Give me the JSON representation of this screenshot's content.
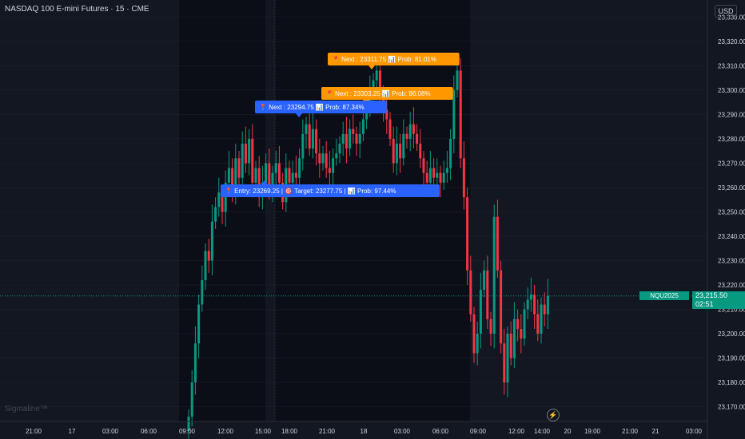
{
  "header": {
    "title": "NASDAQ 100 E-mini Futures · 15 · CME",
    "currency": "USD"
  },
  "watermark": "Sigmaline™",
  "price_badge": {
    "symbol": "NQU2025",
    "price": "23,215.50",
    "countdown": "02:51"
  },
  "annotations": [
    {
      "text": "📍 Next : 23311.75 📊 Prob: 81.01%",
      "color": "#ff9800",
      "price": 23311.75,
      "time": "02:30"
    },
    {
      "text": "📍 Next : 23303.25 📊 Prob: 86.08%",
      "color": "#ff9800",
      "price": 23303.25,
      "time": "01:30"
    },
    {
      "text": "📍 Next : 23294.75 📊 Prob: 87.34%",
      "color": "#2962ff",
      "price": 23294.75,
      "time": "22:45"
    },
    {
      "text": "📍 Entry: 23269.25 | 🎯 Target: 23277.75 | 📊 Prob: 97.44%",
      "color": "#2962ff",
      "price": 23269.25,
      "time": "18:45"
    }
  ],
  "colors": {
    "up": "#089981",
    "down": "#f23645",
    "session_bg": "#0b0e17",
    "grid": "#1e222d",
    "text": "#d1d4dc",
    "current_line": "#089981"
  },
  "chart_data": {
    "type": "candlestick",
    "title": "NASDAQ 100 E-mini Futures · 15 · CME",
    "y_ticks": [
      23330,
      23320,
      23310,
      23300,
      23290,
      23280,
      23270,
      23260,
      23250,
      23240,
      23230,
      23220,
      23210,
      23200,
      23190,
      23180,
      23170
    ],
    "y_tick_labels": [
      "23,330.00",
      "23,320.00",
      "23,310.00",
      "23,300.00",
      "23,290.00",
      "23,280.00",
      "23,270.00",
      "23,260.00",
      "23,250.00",
      "23,240.00",
      "23,230.00",
      "23,220.00",
      "23,210.00",
      "23,200.00",
      "23,190.00",
      "23,180.00",
      "23,170.00"
    ],
    "x_tick_labels": [
      "21:00",
      "17",
      "03:00",
      "06:00",
      "09:00",
      "12:00",
      "15:00",
      "18:00",
      "21:00",
      "18",
      "03:00",
      "06:00",
      "09:00",
      "12:00",
      "14:00",
      "20",
      "19:00",
      "21:00",
      "21",
      "03:00"
    ],
    "ylim": [
      23164,
      23335
    ],
    "current_price": 23215.5,
    "closes": [
      23166,
      23180,
      23196,
      23212,
      23222,
      23234,
      23230,
      23246,
      23252,
      23258,
      23250,
      23262,
      23268,
      23258,
      23272,
      23264,
      23278,
      23270,
      23280,
      23262,
      23268,
      23256,
      23262,
      23270,
      23258,
      23266,
      23270,
      23262,
      23254,
      23268,
      23262,
      23266,
      23264,
      23272,
      23282,
      23286,
      23276,
      23284,
      23274,
      23270,
      23274,
      23268,
      23266,
      23272,
      23274,
      23278,
      23282,
      23276,
      23284,
      23282,
      23278,
      23282,
      23288,
      23294,
      23300,
      23304,
      23308,
      23298,
      23292,
      23288,
      23280,
      23270,
      23278,
      23272,
      23282,
      23280,
      23286,
      23282,
      23278,
      23272,
      23266,
      23262,
      23268,
      23264,
      23266,
      23262,
      23266,
      23268,
      23280,
      23300,
      23308,
      23272,
      23256,
      23226,
      23208,
      23192,
      23200,
      23218,
      23226,
      23206,
      23200,
      23248,
      23226,
      23196,
      23180,
      23200,
      23190,
      23206,
      23202,
      23198,
      23210,
      23214,
      23216,
      23208,
      23200,
      23212,
      23208,
      23215.5
    ]
  }
}
